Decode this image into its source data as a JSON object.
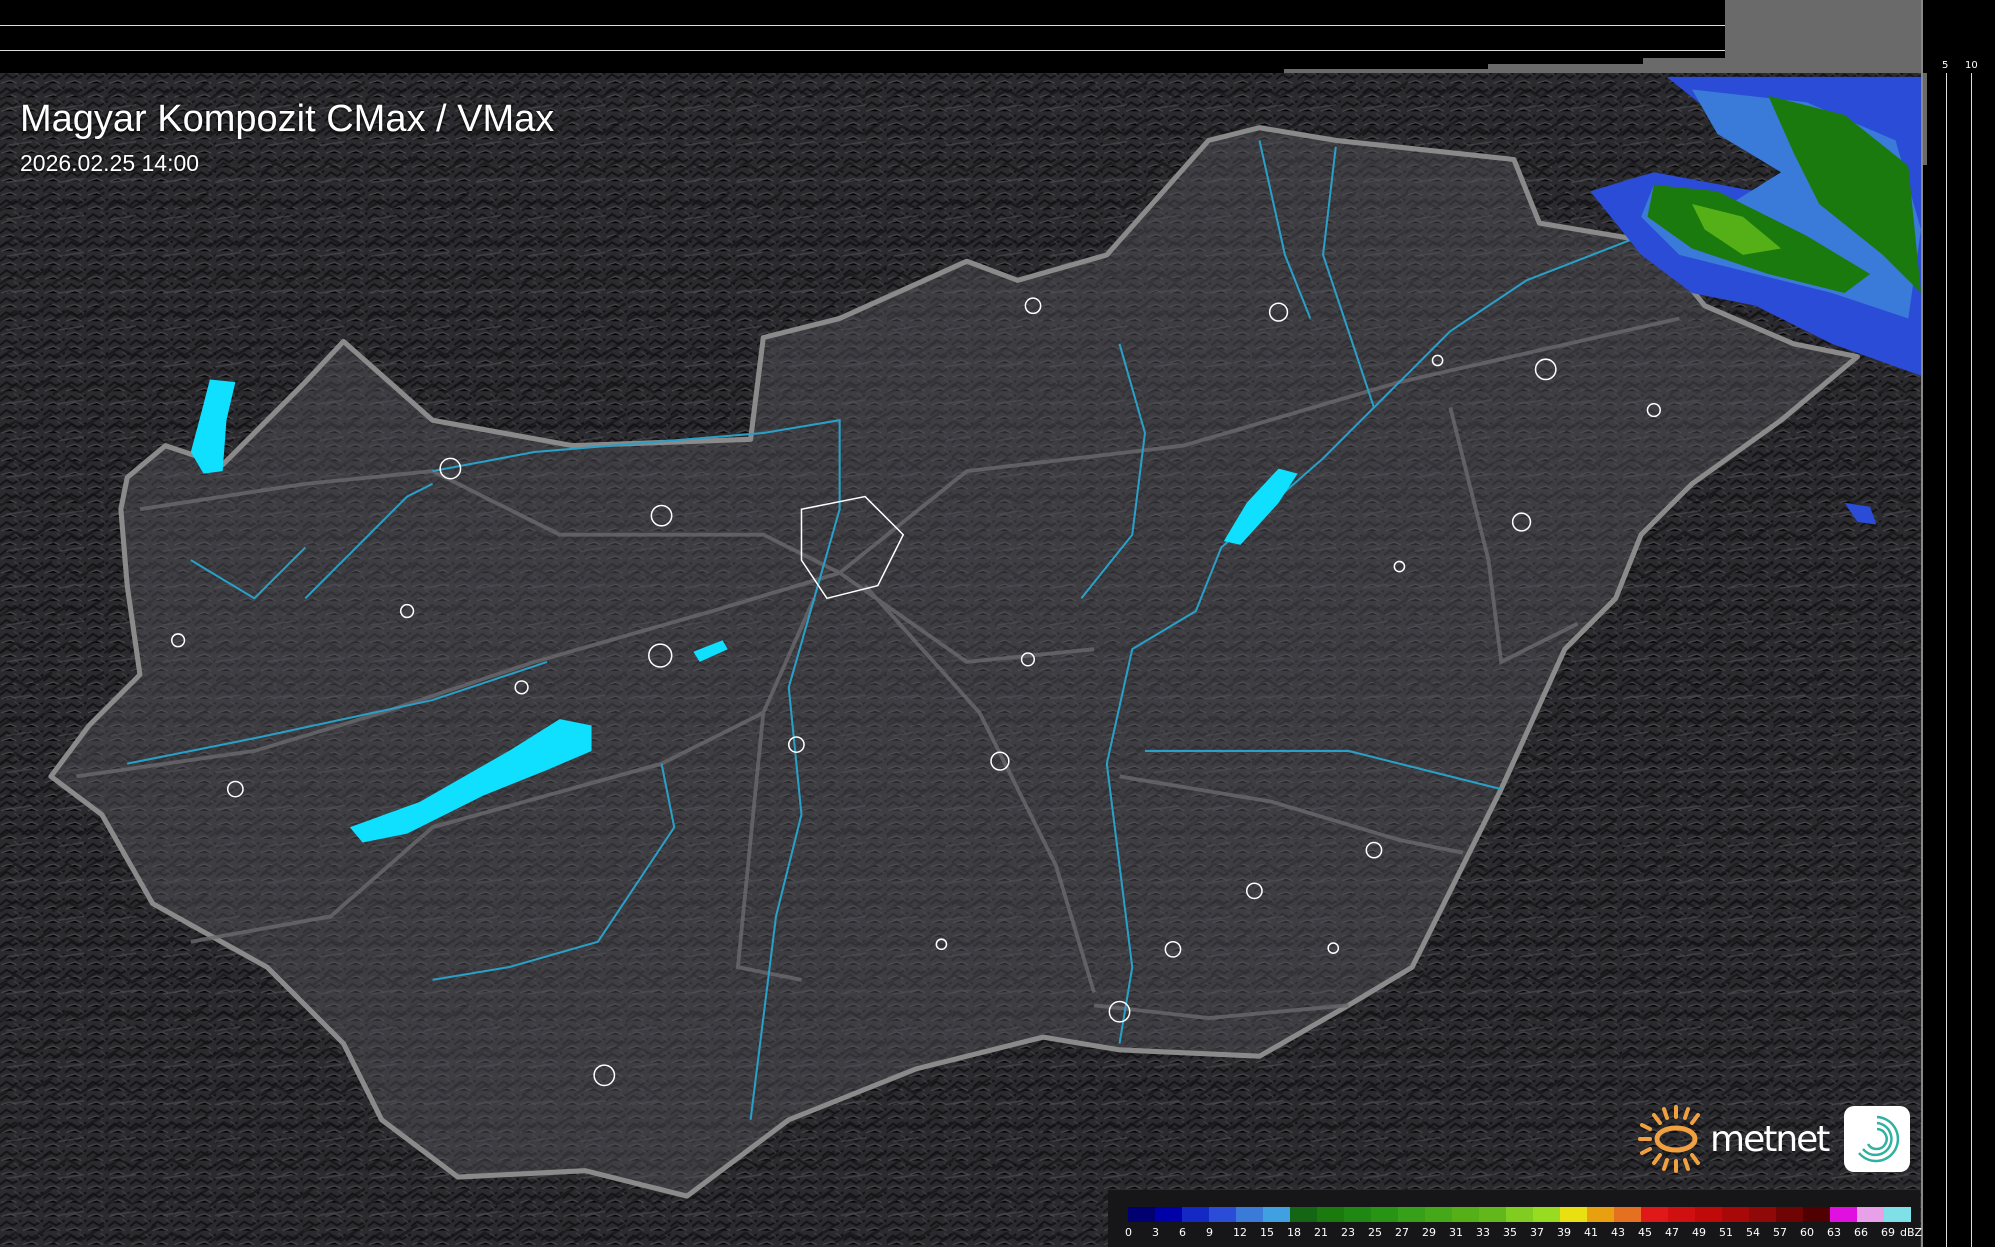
{
  "header": {
    "title": "Magyar Kompozit CMax / VMax",
    "timestamp": "2026.02.25 14:00"
  },
  "top_profile": {
    "ticks": [
      "10",
      "5"
    ]
  },
  "side_profile": {
    "ticks": [
      "5",
      "10"
    ]
  },
  "legend": {
    "unit": "dBZ",
    "steps": [
      {
        "label": "0",
        "color": "#000070"
      },
      {
        "label": "3",
        "color": "#0000a8"
      },
      {
        "label": "6",
        "color": "#1428c4"
      },
      {
        "label": "9",
        "color": "#2a4cd6"
      },
      {
        "label": "12",
        "color": "#3a7ad8"
      },
      {
        "label": "15",
        "color": "#40a0e2"
      },
      {
        "label": "18",
        "color": "#146614"
      },
      {
        "label": "21",
        "color": "#1a7a0e"
      },
      {
        "label": "23",
        "color": "#1f8812"
      },
      {
        "label": "25",
        "color": "#279414"
      },
      {
        "label": "27",
        "color": "#35a018"
      },
      {
        "label": "29",
        "color": "#45a818"
      },
      {
        "label": "31",
        "color": "#55b018"
      },
      {
        "label": "33",
        "color": "#62b81a"
      },
      {
        "label": "35",
        "color": "#80cc20"
      },
      {
        "label": "37",
        "color": "#98dc22"
      },
      {
        "label": "39",
        "color": "#e8e010"
      },
      {
        "label": "41",
        "color": "#e8a010"
      },
      {
        "label": "43",
        "color": "#e47020"
      },
      {
        "label": "45",
        "color": "#e01818"
      },
      {
        "label": "47",
        "color": "#d01010"
      },
      {
        "label": "49",
        "color": "#c00a0a"
      },
      {
        "label": "51",
        "color": "#a80808"
      },
      {
        "label": "54",
        "color": "#900808"
      },
      {
        "label": "57",
        "color": "#700404"
      },
      {
        "label": "60",
        "color": "#500000"
      },
      {
        "label": "63",
        "color": "#e010e0"
      },
      {
        "label": "66",
        "color": "#e8a0e8"
      },
      {
        "label": "69",
        "color": "#80e0e8"
      }
    ]
  },
  "logo": {
    "brand": "metnet",
    "sun_color": "#f0a040",
    "icon": "swirl-app-icon",
    "icon_color": "#30b0a0"
  },
  "map": {
    "country_border_color": "#8a8a8a",
    "river_color": "#2aa0c8",
    "lake_color": "#10e0ff",
    "settlement_color": "#ffffff"
  }
}
